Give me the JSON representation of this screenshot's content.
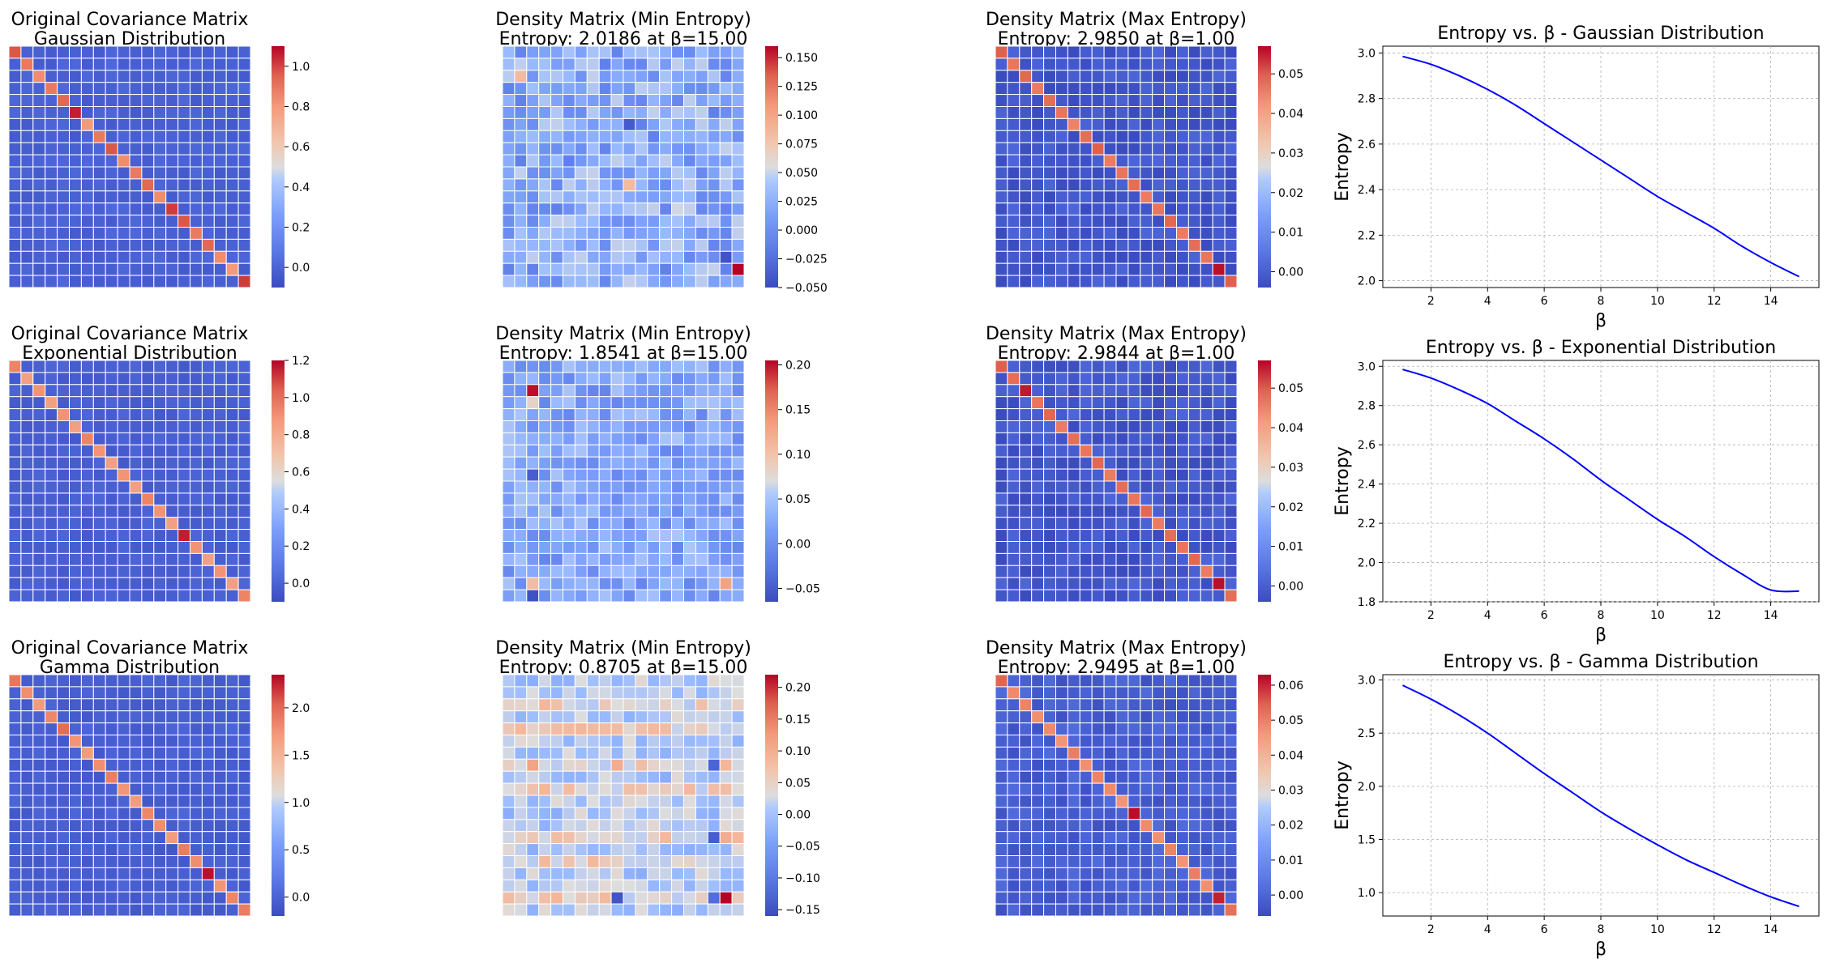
{
  "figure": {
    "colorbar_colors": {
      "low": "#3b4cc0",
      "mid": "#dddddd",
      "high": "#b40426"
    },
    "line_color": "#0000ff"
  },
  "chart_data": [
    {
      "type": "heatmap",
      "title": [
        "Original Covariance Matrix",
        "Gaussian Distribution"
      ],
      "size": 20,
      "matrix_kind": "covariance",
      "diag_values": [
        0.95,
        0.85,
        0.8,
        0.85,
        0.9,
        1.05,
        0.75,
        0.85,
        0.95,
        0.8,
        0.85,
        0.9,
        0.8,
        1.0,
        0.95,
        0.85,
        0.9,
        0.8,
        0.75,
        1.0
      ],
      "offdiag_mean": -0.02,
      "offdiag_spread": 0.05,
      "vmin": -0.1,
      "vmax": 1.1,
      "colorbar_ticks": [
        0.0,
        0.2,
        0.4,
        0.6,
        0.8,
        1.0
      ],
      "colorbar_tick_labels": [
        "0.0",
        "0.2",
        "0.4",
        "0.6",
        "0.8",
        "1.0"
      ]
    },
    {
      "type": "heatmap",
      "title": [
        "Density Matrix (Min Entropy)",
        "Entropy: 2.0186 at β=15.00"
      ],
      "size": 20,
      "matrix_kind": "density-min",
      "vmin": -0.05,
      "vmax": 0.16,
      "bright_cells": [
        [
          2,
          1,
          0.08
        ],
        [
          11,
          10,
          0.08
        ],
        [
          13,
          14,
          0.05
        ],
        [
          18,
          19,
          0.16
        ],
        [
          17,
          18,
          -0.045
        ],
        [
          6,
          10,
          -0.04
        ]
      ],
      "colorbar_ticks": [
        -0.05,
        -0.025,
        0.0,
        0.025,
        0.05,
        0.075,
        0.1,
        0.125,
        0.15
      ],
      "colorbar_tick_labels": [
        "−0.050",
        "−0.025",
        "0.000",
        "0.025",
        "0.050",
        "0.075",
        "0.100",
        "0.125",
        "0.150"
      ]
    },
    {
      "type": "heatmap",
      "title": [
        "Density Matrix (Max Entropy)",
        "Entropy: 2.9850 at β=1.00"
      ],
      "size": 20,
      "matrix_kind": "density-max",
      "diag_values": [
        0.048,
        0.045,
        0.047,
        0.044,
        0.046,
        0.045,
        0.043,
        0.046,
        0.048,
        0.044,
        0.045,
        0.046,
        0.044,
        0.045,
        0.047,
        0.044,
        0.046,
        0.045,
        0.056,
        0.048
      ],
      "vmin": -0.004,
      "vmax": 0.057,
      "colorbar_ticks": [
        0.0,
        0.01,
        0.02,
        0.03,
        0.04,
        0.05
      ],
      "colorbar_tick_labels": [
        "0.00",
        "0.01",
        "0.02",
        "0.03",
        "0.04",
        "0.05"
      ]
    },
    {
      "type": "line",
      "title": "Entropy vs. β - Gaussian Distribution",
      "xlabel": "β",
      "ylabel": "Entropy",
      "x": [
        1,
        2,
        3,
        4,
        5,
        6,
        7,
        8,
        9,
        10,
        11,
        12,
        13,
        14,
        15
      ],
      "y": [
        2.985,
        2.95,
        2.9,
        2.84,
        2.77,
        2.69,
        2.61,
        2.53,
        2.45,
        2.37,
        2.3,
        2.23,
        2.15,
        2.08,
        2.018
      ],
      "xlim": [
        0.3,
        15.7
      ],
      "ylim": [
        1.97,
        3.03
      ],
      "xticks": [
        2,
        4,
        6,
        8,
        10,
        12,
        14
      ],
      "yticks": [
        2.0,
        2.2,
        2.4,
        2.6,
        2.8,
        3.0
      ],
      "ytick_labels": [
        "2.0",
        "2.2",
        "2.4",
        "2.6",
        "2.8",
        "3.0"
      ],
      "grid": true
    },
    {
      "type": "heatmap",
      "title": [
        "Original Covariance Matrix",
        "Exponential Distribution"
      ],
      "size": 20,
      "matrix_kind": "covariance",
      "diag_values": [
        0.9,
        0.8,
        0.85,
        0.8,
        0.85,
        0.8,
        0.9,
        0.85,
        0.8,
        0.85,
        0.8,
        0.9,
        0.85,
        0.8,
        1.15,
        0.85,
        0.8,
        0.85,
        0.8,
        0.9
      ],
      "offdiag_mean": -0.02,
      "offdiag_spread": 0.05,
      "vmin": -0.1,
      "vmax": 1.2,
      "colorbar_ticks": [
        0.0,
        0.2,
        0.4,
        0.6,
        0.8,
        1.0,
        1.2
      ],
      "colorbar_tick_labels": [
        "0.0",
        "0.2",
        "0.4",
        "0.6",
        "0.8",
        "1.0",
        "1.2"
      ]
    },
    {
      "type": "heatmap",
      "title": [
        "Density Matrix (Min Entropy)",
        "Entropy: 1.8541 at β=15.00"
      ],
      "size": 20,
      "matrix_kind": "density-min",
      "vmin": -0.065,
      "vmax": 0.205,
      "bright_cells": [
        [
          2,
          2,
          0.2
        ],
        [
          3,
          2,
          0.08
        ],
        [
          18,
          2,
          0.1
        ],
        [
          18,
          18,
          0.12
        ],
        [
          19,
          2,
          -0.06
        ],
        [
          9,
          2,
          -0.05
        ]
      ],
      "colorbar_ticks": [
        -0.05,
        0.0,
        0.05,
        0.1,
        0.15,
        0.2
      ],
      "colorbar_tick_labels": [
        "−0.05",
        "0.00",
        "0.05",
        "0.10",
        "0.15",
        "0.20"
      ]
    },
    {
      "type": "heatmap",
      "title": [
        "Density Matrix (Max Entropy)",
        "Entropy: 2.9844 at β=1.00"
      ],
      "size": 20,
      "matrix_kind": "density-max",
      "diag_values": [
        0.048,
        0.046,
        0.055,
        0.045,
        0.047,
        0.044,
        0.046,
        0.045,
        0.047,
        0.044,
        0.046,
        0.045,
        0.047,
        0.044,
        0.046,
        0.045,
        0.047,
        0.044,
        0.056,
        0.046
      ],
      "vmin": -0.004,
      "vmax": 0.057,
      "colorbar_ticks": [
        0.0,
        0.01,
        0.02,
        0.03,
        0.04,
        0.05
      ],
      "colorbar_tick_labels": [
        "0.00",
        "0.01",
        "0.02",
        "0.03",
        "0.04",
        "0.05"
      ]
    },
    {
      "type": "line",
      "title": "Entropy vs. β - Exponential Distribution",
      "xlabel": "β",
      "ylabel": "Entropy",
      "x": [
        1,
        2,
        3,
        4,
        5,
        6,
        7,
        8,
        9,
        10,
        11,
        12,
        13,
        14,
        15
      ],
      "y": [
        2.984,
        2.94,
        2.88,
        2.81,
        2.72,
        2.63,
        2.53,
        2.42,
        2.32,
        2.22,
        2.13,
        2.03,
        1.94,
        1.86,
        1.854
      ],
      "xlim": [
        0.3,
        15.7
      ],
      "ylim": [
        1.8,
        3.03
      ],
      "xticks": [
        2,
        4,
        6,
        8,
        10,
        12,
        14
      ],
      "yticks": [
        1.8,
        2.0,
        2.2,
        2.4,
        2.6,
        2.8,
        3.0
      ],
      "ytick_labels": [
        "1.8",
        "2.0",
        "2.2",
        "2.4",
        "2.6",
        "2.8",
        "3.0"
      ],
      "grid": true
    },
    {
      "type": "heatmap",
      "title": [
        "Original Covariance Matrix",
        "Gamma Distribution"
      ],
      "size": 20,
      "matrix_kind": "covariance",
      "diag_values": [
        1.85,
        1.7,
        1.6,
        1.75,
        1.9,
        1.65,
        1.6,
        1.7,
        1.8,
        1.65,
        1.6,
        1.75,
        1.7,
        1.6,
        1.8,
        1.7,
        2.3,
        1.65,
        1.75,
        1.8
      ],
      "offdiag_mean": -0.05,
      "offdiag_spread": 0.1,
      "vmin": -0.2,
      "vmax": 2.35,
      "colorbar_ticks": [
        0.0,
        0.5,
        1.0,
        1.5,
        2.0
      ],
      "colorbar_tick_labels": [
        "0.0",
        "0.5",
        "1.0",
        "1.5",
        "2.0"
      ]
    },
    {
      "type": "heatmap",
      "title": [
        "Density Matrix (Min Entropy)",
        "Entropy: 0.8705 at β=15.00"
      ],
      "size": 20,
      "matrix_kind": "density-min-banded",
      "vmin": -0.16,
      "vmax": 0.22,
      "bright_cells": [
        [
          18,
          18,
          0.22
        ],
        [
          18,
          9,
          -0.15
        ],
        [
          18,
          17,
          -0.12
        ],
        [
          13,
          17,
          -0.14
        ],
        [
          7,
          17,
          -0.13
        ],
        [
          7,
          2,
          0.1
        ],
        [
          7,
          9,
          0.09
        ],
        [
          13,
          18,
          0.09
        ]
      ],
      "colorbar_ticks": [
        -0.15,
        -0.1,
        -0.05,
        0.0,
        0.05,
        0.1,
        0.15,
        0.2
      ],
      "colorbar_tick_labels": [
        "−0.15",
        "−0.10",
        "−0.05",
        "0.00",
        "0.05",
        "0.10",
        "0.15",
        "0.20"
      ]
    },
    {
      "type": "heatmap",
      "title": [
        "Density Matrix (Max Entropy)",
        "Entropy: 2.9495 at β=1.00"
      ],
      "size": 20,
      "matrix_kind": "density-max",
      "diag_values": [
        0.052,
        0.046,
        0.047,
        0.045,
        0.046,
        0.044,
        0.048,
        0.045,
        0.047,
        0.046,
        0.044,
        0.062,
        0.046,
        0.045,
        0.047,
        0.044,
        0.048,
        0.045,
        0.06,
        0.05
      ],
      "vmin": -0.006,
      "vmax": 0.063,
      "colorbar_ticks": [
        0.0,
        0.01,
        0.02,
        0.03,
        0.04,
        0.05,
        0.06
      ],
      "colorbar_tick_labels": [
        "0.00",
        "0.01",
        "0.02",
        "0.03",
        "0.04",
        "0.05",
        "0.06"
      ]
    },
    {
      "type": "line",
      "title": "Entropy vs. β - Gamma Distribution",
      "xlabel": "β",
      "ylabel": "Entropy",
      "x": [
        1,
        2,
        3,
        4,
        5,
        6,
        7,
        8,
        9,
        10,
        11,
        12,
        13,
        14,
        15
      ],
      "y": [
        2.95,
        2.82,
        2.67,
        2.5,
        2.31,
        2.12,
        1.94,
        1.76,
        1.6,
        1.45,
        1.31,
        1.19,
        1.07,
        0.96,
        0.87
      ],
      "xlim": [
        0.3,
        15.7
      ],
      "ylim": [
        0.78,
        3.05
      ],
      "xticks": [
        2,
        4,
        6,
        8,
        10,
        12,
        14
      ],
      "yticks": [
        1.0,
        1.5,
        2.0,
        2.5,
        3.0
      ],
      "ytick_labels": [
        "1.0",
        "1.5",
        "2.0",
        "2.5",
        "3.0"
      ],
      "grid": true
    }
  ]
}
